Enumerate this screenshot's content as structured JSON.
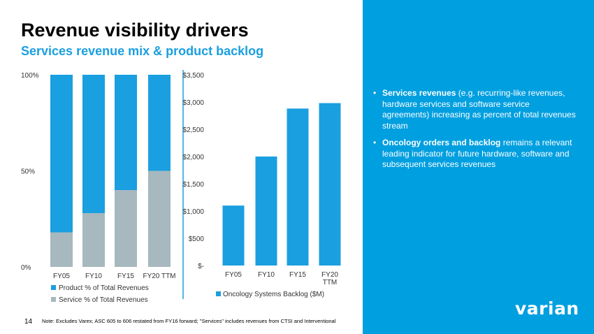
{
  "header": {
    "title": "Revenue visibility drivers",
    "subtitle": "Services revenue mix & product backlog"
  },
  "colors": {
    "accent": "#009fe0",
    "product": "#1a9fe0",
    "service": "#a7b8bf"
  },
  "chart_data": [
    {
      "type": "bar",
      "stacked": true,
      "categories": [
        "FY05",
        "FY10",
        "FY15",
        "FY20 TTM"
      ],
      "series": [
        {
          "name": "Service % of Total Revenues",
          "values": [
            18,
            28,
            40,
            50
          ]
        },
        {
          "name": "Product % of Total Revenues",
          "values": [
            82,
            72,
            60,
            50
          ]
        }
      ],
      "ylim": [
        0,
        100
      ],
      "ytick_labels": [
        "0%",
        "50%",
        "100%"
      ],
      "legend": [
        "Product % of Total Revenues",
        "Service % of Total Revenues"
      ]
    },
    {
      "type": "bar",
      "categories": [
        "FY05",
        "FY10",
        "FY15",
        "FY20 TTM"
      ],
      "series": [
        {
          "name": "Oncology Systems Backlog ($M)",
          "values": [
            1100,
            2000,
            2880,
            2980
          ]
        }
      ],
      "ylim": [
        0,
        3500
      ],
      "ytick_values": [
        0,
        500,
        1000,
        1500,
        2000,
        2500,
        3000,
        3500
      ],
      "ytick_labels": [
        "$-",
        "$500",
        "$1,000",
        "$1,500",
        "$2,000",
        "$2,500",
        "$3,000",
        "$3,500"
      ],
      "xtick_labels": [
        [
          "FY05"
        ],
        [
          "FY10"
        ],
        [
          "FY15"
        ],
        [
          "FY20",
          "TTM"
        ]
      ],
      "legend": [
        "Oncology Systems Backlog ($M)"
      ]
    }
  ],
  "panel": {
    "bullets": [
      {
        "dot": "•",
        "bold": "Services revenues",
        "text": " (e.g. recurring-like revenues, hardware services and software service agreements) increasing as percent of total revenues stream"
      },
      {
        "dot": "•",
        "bold": "Oncology orders and backlog",
        "text": " remains a relevant leading indicator for future hardware, software and subsequent services revenues"
      }
    ]
  },
  "footer": {
    "page_number": "14",
    "note": "Note:  Excludes Varex; ASC 605 to 606 restated from FY16 forward; \"Services\" includes revenues from CTSI and Interventional",
    "logo": "varian"
  }
}
